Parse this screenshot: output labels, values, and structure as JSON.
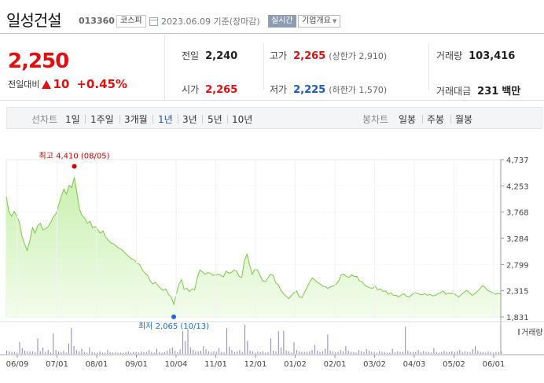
{
  "header": {
    "name": "일성건설",
    "code": "013360",
    "market": "코스피",
    "date_text": "2023.06.09 기준(장마감)",
    "realtime_label": "실시간",
    "overview_label": "기업개요"
  },
  "quote": {
    "price": "2,250",
    "diff_label": "전일대비",
    "diff": "10",
    "diff_pct": "+0.45%",
    "prev_label": "전일",
    "prev": "2,240",
    "high_label": "고가",
    "high": "2,265",
    "upper_limit": "(상한가 2,910)",
    "volume_label": "거래량",
    "volume": "103,416",
    "open_label": "시가",
    "open": "2,265",
    "low_label": "저가",
    "low": "2,225",
    "lower_limit": "(하한가 1,570)",
    "amount_label": "거래대금",
    "amount": "231",
    "amount_unit": "백만"
  },
  "periods": {
    "line_label": "선차트",
    "items": [
      "1일",
      "1주일",
      "3개월",
      "1년",
      "3년",
      "5년",
      "10년"
    ],
    "active": "1년",
    "candle_label": "봉차트",
    "candle_items": [
      "일봉",
      "주봉",
      "월봉"
    ]
  },
  "chart_data": {
    "type": "area",
    "x_ticks": [
      "06/09",
      "07/01",
      "08/01",
      "09/01",
      "10/04",
      "11/01",
      "12/01",
      "01/02",
      "02/01",
      "03/02",
      "04/03",
      "05/02",
      "06/01"
    ],
    "y_ticks": [
      "4,737",
      "4,253",
      "3,768",
      "3,284",
      "2,799",
      "2,315",
      "1,831"
    ],
    "ylim": [
      1831,
      4737
    ],
    "high_label": "최고 4,410 (08/05)",
    "low_label": "최저 2,065 (10/13)",
    "volume_label": "거래량",
    "colors": {
      "line": "#7ac943",
      "fill_top": "#c9f0b0",
      "fill_bottom": "#f3fcec",
      "high": "#d40000",
      "low": "#1a6ad4",
      "volume": "#8a84b8"
    },
    "series": [
      {
        "values": [
          4050,
          3780,
          3690,
          3780,
          3700,
          3580,
          3320,
          3180,
          3060,
          3240,
          3480,
          3380,
          3520,
          3560,
          3440,
          3460,
          3500,
          3580,
          3680,
          3740,
          3900,
          4060,
          4190,
          4100,
          4260,
          4220,
          4410,
          4120,
          3820,
          3700,
          3660,
          3560,
          3600,
          3480,
          3500,
          3440,
          3380,
          3420,
          3300,
          3250,
          3200,
          3180,
          3140,
          3100,
          3080,
          3030,
          2980,
          2940,
          2900,
          2880,
          2820,
          2800,
          2700,
          2640,
          2600,
          2500,
          2440,
          2470,
          2410,
          2360,
          2320,
          2350,
          2250,
          2200,
          2065,
          2250,
          2440,
          2520,
          2340,
          2360,
          2300,
          2350,
          2330,
          2550,
          2700,
          2660,
          2620,
          2650,
          2640,
          2600,
          2610,
          2620,
          2600,
          2570,
          2680,
          2640,
          2650,
          2700,
          2680,
          2580,
          2560,
          2870,
          2990,
          2790,
          2620,
          2710,
          2700,
          2600,
          2500,
          2480,
          2550,
          2620,
          2600,
          2460,
          2430,
          2320,
          2260,
          2210,
          2170,
          2230,
          2280,
          2310,
          2200,
          2190,
          2290,
          2380,
          2480,
          2550,
          2510,
          2470,
          2440,
          2400,
          2390,
          2360,
          2390,
          2400,
          2430,
          2490,
          2610,
          2620,
          2580,
          2560,
          2610,
          2580,
          2580,
          2500,
          2480,
          2420,
          2390,
          2370,
          2360,
          2400,
          2330,
          2350,
          2300,
          2310,
          2250,
          2280,
          2230,
          2230,
          2200,
          2240,
          2260,
          2210,
          2200,
          2240,
          2280,
          2270,
          2250,
          2240,
          2260,
          2230,
          2250,
          2220,
          2230,
          2260,
          2280,
          2310,
          2250,
          2270,
          2260,
          2270,
          2230,
          2200,
          2250,
          2290,
          2320,
          2280,
          2230,
          2260,
          2300,
          2350,
          2410,
          2380,
          2320,
          2300,
          2280,
          2250,
          2270,
          2250
        ]
      }
    ],
    "volume": [
      5,
      4,
      3,
      3,
      2,
      18,
      9,
      5,
      4,
      4,
      4,
      3,
      24,
      4,
      10,
      3,
      6,
      2,
      32,
      6,
      4,
      3,
      5,
      2,
      16,
      40,
      12,
      6,
      4,
      8,
      3,
      2,
      10,
      3,
      2,
      2,
      4,
      2,
      2,
      6,
      3,
      2,
      3,
      2,
      2,
      2,
      3,
      4,
      2,
      3,
      3,
      2,
      4,
      3,
      3,
      6,
      3,
      2,
      8,
      3,
      2,
      3,
      5,
      8,
      10,
      5,
      3,
      7,
      35,
      20,
      38,
      10,
      6,
      4,
      4,
      5,
      12,
      7,
      4,
      3,
      4,
      4,
      9,
      3,
      2,
      40,
      11,
      6,
      3,
      4,
      6,
      3,
      45,
      20,
      5,
      4,
      2,
      4,
      3,
      4,
      2,
      3,
      24,
      5,
      4,
      35,
      10,
      36,
      5,
      4,
      2,
      18,
      6,
      4,
      3,
      3,
      3,
      4,
      6,
      14,
      5,
      3,
      4,
      8,
      30,
      5,
      4,
      3,
      3,
      6,
      4,
      12,
      5,
      3,
      3,
      2,
      6,
      4,
      3,
      7,
      5,
      3,
      3,
      2,
      4,
      3,
      3,
      2,
      2,
      8,
      3,
      4,
      3,
      3,
      42,
      5,
      3,
      3,
      3,
      6,
      3,
      4,
      3,
      3,
      2,
      9,
      3,
      2,
      3,
      5,
      3,
      3,
      4,
      3,
      4,
      6,
      3,
      4,
      3,
      3,
      7,
      12,
      5,
      3,
      3,
      2,
      4,
      3,
      2,
      3,
      3,
      4
    ]
  }
}
